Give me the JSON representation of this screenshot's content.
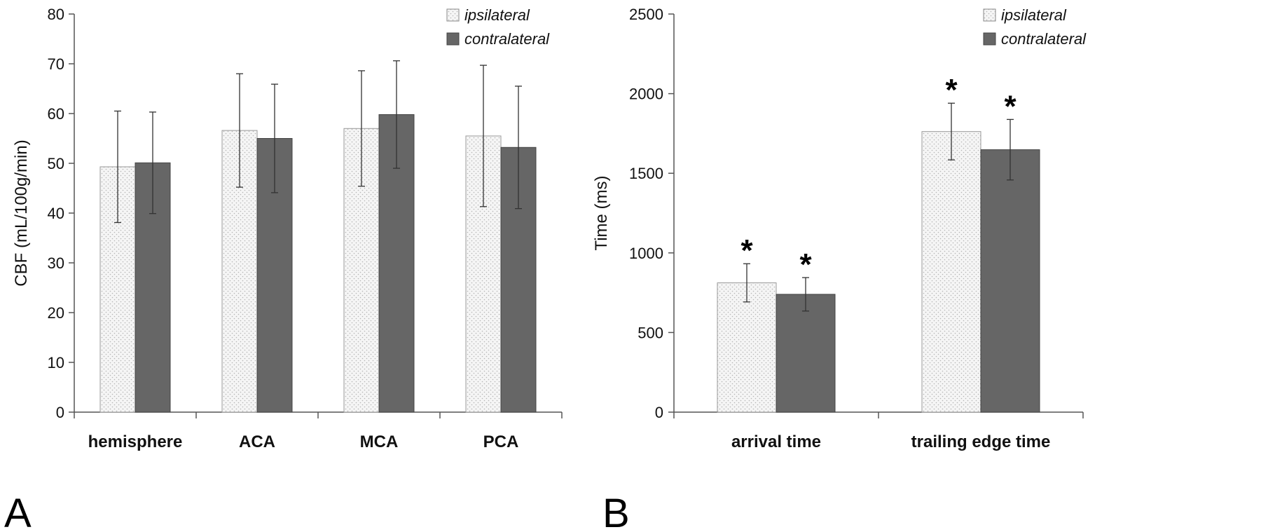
{
  "chart_data": [
    {
      "panel": "A",
      "type": "bar",
      "ylabel": "CBF (mL/100g/min)",
      "xlabel": "",
      "ylim": [
        0,
        80
      ],
      "yticks": [
        0,
        10,
        20,
        30,
        40,
        50,
        60,
        70,
        80
      ],
      "categories": [
        "hemisphere",
        "ACA",
        "MCA",
        "PCA"
      ],
      "series": [
        {
          "name": "ipsilateral",
          "values": [
            49.3,
            56.6,
            57.0,
            55.5
          ],
          "errors": [
            11.2,
            11.4,
            11.6,
            14.2
          ]
        },
        {
          "name": "contralateral",
          "values": [
            50.1,
            55.0,
            59.8,
            53.2
          ],
          "errors": [
            10.2,
            10.9,
            10.8,
            12.3
          ]
        }
      ],
      "significance": [],
      "legend_position": "top-right",
      "grid": false
    },
    {
      "panel": "B",
      "type": "bar",
      "ylabel": "Time (ms)",
      "xlabel": "",
      "ylim": [
        0,
        2500
      ],
      "yticks": [
        0,
        500,
        1000,
        1500,
        2000,
        2500
      ],
      "categories": [
        "arrival time",
        "trailing edge time"
      ],
      "series": [
        {
          "name": "ipsilateral",
          "values": [
            812,
            1762
          ],
          "errors": [
            120,
            178
          ]
        },
        {
          "name": "contralateral",
          "values": [
            740,
            1648
          ],
          "errors": [
            105,
            190
          ]
        }
      ],
      "significance": [
        {
          "category": 0,
          "series": 0,
          "mark": "*"
        },
        {
          "category": 0,
          "series": 1,
          "mark": "*"
        },
        {
          "category": 1,
          "series": 0,
          "mark": "*"
        },
        {
          "category": 1,
          "series": 1,
          "mark": "*"
        }
      ],
      "legend_position": "top-right",
      "grid": false
    }
  ],
  "colors": {
    "ipsilateral_fill": "#f4f4f4",
    "ipsilateral_dots": "#b8b8b8",
    "contralateral_fill": "#666666",
    "bar_stroke": "#444444",
    "axis": "#555555",
    "error_bar": "#333333"
  }
}
